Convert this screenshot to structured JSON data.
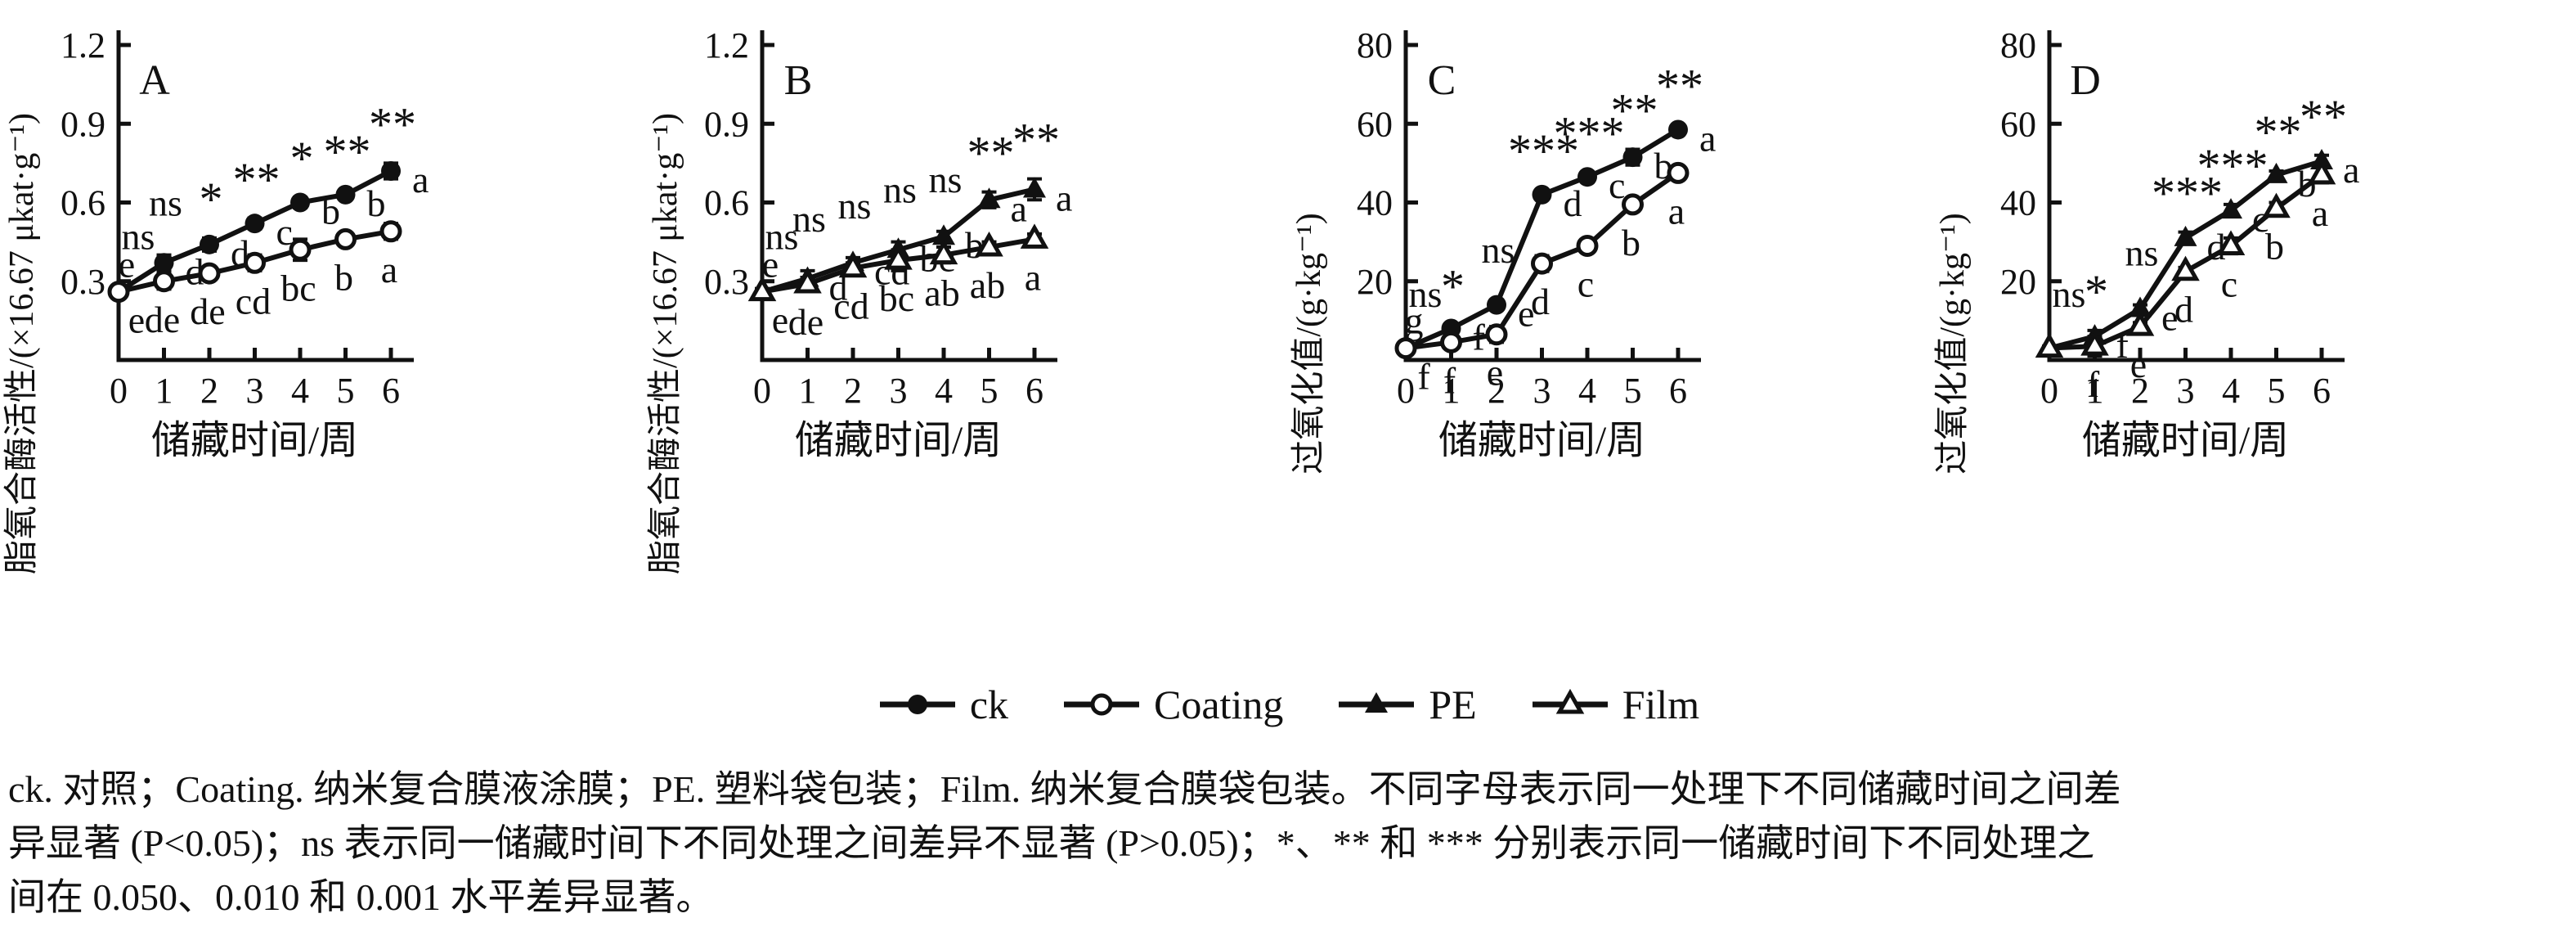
{
  "colors": {
    "ink": "#111111",
    "background": "#ffffff"
  },
  "legend": {
    "position": "bottom-center",
    "items": [
      {
        "label": "ck",
        "marker": "filled-circle"
      },
      {
        "label": "Coating",
        "marker": "open-circle"
      },
      {
        "label": "PE",
        "marker": "filled-triangle"
      },
      {
        "label": "Film",
        "marker": "open-triangle"
      }
    ]
  },
  "caption": {
    "lines": [
      "ck. 对照；Coating. 纳米复合膜液涂膜；PE. 塑料袋包装；Film. 纳米复合膜袋包装。不同字母表示同一处理下不同储藏时间之间差",
      "异显著 (P<0.05)；ns 表示同一储藏时间下不同处理之间差异不显著 (P>0.05)；*、** 和 *** 分别表示同一储藏时间下不同处理之",
      "间在 0.050、0.010 和 0.001 水平差异显著。"
    ]
  },
  "chart_data": [
    {
      "type": "line",
      "panel_label": "A",
      "ylabel": "脂氧合酶活性/(×16.67 μkat·g⁻¹)",
      "xlabel": "储藏时间/周",
      "x": [
        0,
        1,
        2,
        3,
        4,
        5,
        6
      ],
      "yticks": [
        0.3,
        0.6,
        0.9,
        1.2
      ],
      "ylim": [
        0,
        1.2
      ],
      "grid": false,
      "sig_markers": [
        "ns",
        "ns",
        "*",
        "**",
        "*",
        "**",
        "**"
      ],
      "series": [
        {
          "name": "ck",
          "marker": "filled-circle",
          "letters_position": "right",
          "values": [
            0.26,
            0.37,
            0.44,
            0.52,
            0.6,
            0.63,
            0.72
          ],
          "errors": [
            0.012,
            0.03,
            0.025,
            0.02,
            0.02,
            0.015,
            0.03
          ],
          "letters": [
            "e",
            "d",
            "d",
            "c",
            "b",
            "b",
            "a"
          ]
        },
        {
          "name": "Coating",
          "marker": "open-circle",
          "letters_position": "below",
          "values": [
            0.26,
            0.3,
            0.33,
            0.37,
            0.42,
            0.46,
            0.49
          ],
          "errors": [
            0.012,
            0.03,
            0.02,
            0.03,
            0.04,
            0.02,
            0.03
          ],
          "letters": [
            "e",
            "de",
            "de",
            "cd",
            "bc",
            "b",
            "a"
          ]
        }
      ]
    },
    {
      "type": "line",
      "panel_label": "B",
      "ylabel": "脂氧合酶活性/(×16.67 μkat·g⁻¹)",
      "xlabel": "储藏时间/周",
      "x": [
        0,
        1,
        2,
        3,
        4,
        5,
        6
      ],
      "yticks": [
        0.3,
        0.6,
        0.9,
        1.2
      ],
      "ylim": [
        0,
        1.2
      ],
      "grid": false,
      "sig_markers": [
        "ns",
        "ns",
        "ns",
        "ns",
        "ns",
        "**",
        "**"
      ],
      "series": [
        {
          "name": "PE",
          "marker": "filled-triangle",
          "letters_position": "right",
          "values": [
            0.26,
            0.31,
            0.37,
            0.42,
            0.47,
            0.61,
            0.65
          ],
          "errors": [
            0.012,
            0.03,
            0.02,
            0.03,
            0.02,
            0.03,
            0.04
          ],
          "letters": [
            "e",
            "d",
            "cd",
            "bc",
            "b",
            "a",
            "a"
          ]
        },
        {
          "name": "Film",
          "marker": "open-triangle",
          "letters_position": "below",
          "values": [
            0.26,
            0.29,
            0.35,
            0.38,
            0.4,
            0.43,
            0.46
          ],
          "errors": [
            0.012,
            0.025,
            0.02,
            0.04,
            0.03,
            0.02,
            0.02
          ],
          "letters": [
            "e",
            "de",
            "cd",
            "bc",
            "ab",
            "ab",
            "a"
          ]
        }
      ]
    },
    {
      "type": "line",
      "panel_label": "C",
      "ylabel": "过氧化值/(g·kg⁻¹)",
      "xlabel": "储藏时间/周",
      "x": [
        0,
        1,
        2,
        3,
        4,
        5,
        6
      ],
      "yticks": [
        20,
        40,
        60,
        80
      ],
      "ylim": [
        0,
        80
      ],
      "grid": false,
      "sig_markers": [
        "ns",
        "*",
        "ns",
        "***",
        "***",
        "**",
        "**"
      ],
      "series": [
        {
          "name": "ck",
          "marker": "filled-circle",
          "letters_position": "right",
          "values": [
            3,
            8,
            14,
            42,
            46.5,
            51.5,
            58.5
          ],
          "errors": [
            0.5,
            0.8,
            0.8,
            1.2,
            1.2,
            2,
            1.2
          ],
          "letters": [
            "g",
            "f",
            "e",
            "d",
            "c",
            "b",
            "a"
          ]
        },
        {
          "name": "Coating",
          "marker": "open-circle",
          "letters_position": "below",
          "values": [
            3,
            4.5,
            6.5,
            24.5,
            29,
            39.5,
            47.5
          ],
          "errors": [
            0.5,
            0.5,
            2,
            2,
            1,
            1.5,
            1
          ],
          "letters": [
            "f",
            "f",
            "e",
            "d",
            "c",
            "b",
            "a"
          ]
        }
      ]
    },
    {
      "type": "line",
      "panel_label": "D",
      "ylabel": "过氧化值/(g·kg⁻¹)",
      "xlabel": "储藏时间/周",
      "x": [
        0,
        1,
        2,
        3,
        4,
        5,
        6
      ],
      "yticks": [
        20,
        40,
        60,
        80
      ],
      "ylim": [
        0,
        80
      ],
      "grid": false,
      "sig_markers": [
        "ns",
        "*",
        "ns",
        "***",
        "***",
        "**",
        "**"
      ],
      "series": [
        {
          "name": "PE",
          "marker": "filled-triangle",
          "letters_position": "right",
          "values": [
            3,
            6,
            13,
            31,
            38,
            47,
            50.5
          ],
          "errors": [
            0.5,
            1.5,
            1,
            1.5,
            1.5,
            1,
            1.5
          ],
          "letters": [
            "",
            "f",
            "e",
            "d",
            "c",
            "b",
            "a"
          ]
        },
        {
          "name": "Film",
          "marker": "open-triangle",
          "letters_position": "below",
          "values": [
            3,
            3.5,
            8.5,
            22.5,
            29,
            38.5,
            47
          ],
          "errors": [
            0.5,
            2.5,
            1,
            1,
            2,
            1.5,
            2
          ],
          "letters": [
            "",
            "f",
            "e",
            "d",
            "c",
            "b",
            "a"
          ]
        }
      ]
    }
  ]
}
